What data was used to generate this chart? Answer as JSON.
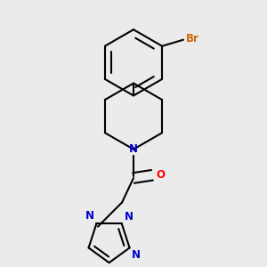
{
  "bg_color": "#ebebeb",
  "bond_color": "#000000",
  "bond_width": 1.5,
  "N_color": "#0000cc",
  "O_color": "#ff0000",
  "Br_color": "#cc6600",
  "font_size": 8.5,
  "fig_width": 3.0,
  "fig_height": 3.0,
  "dpi": 100,
  "xlim": [
    0.05,
    0.95
  ],
  "ylim": [
    0.05,
    0.98
  ]
}
